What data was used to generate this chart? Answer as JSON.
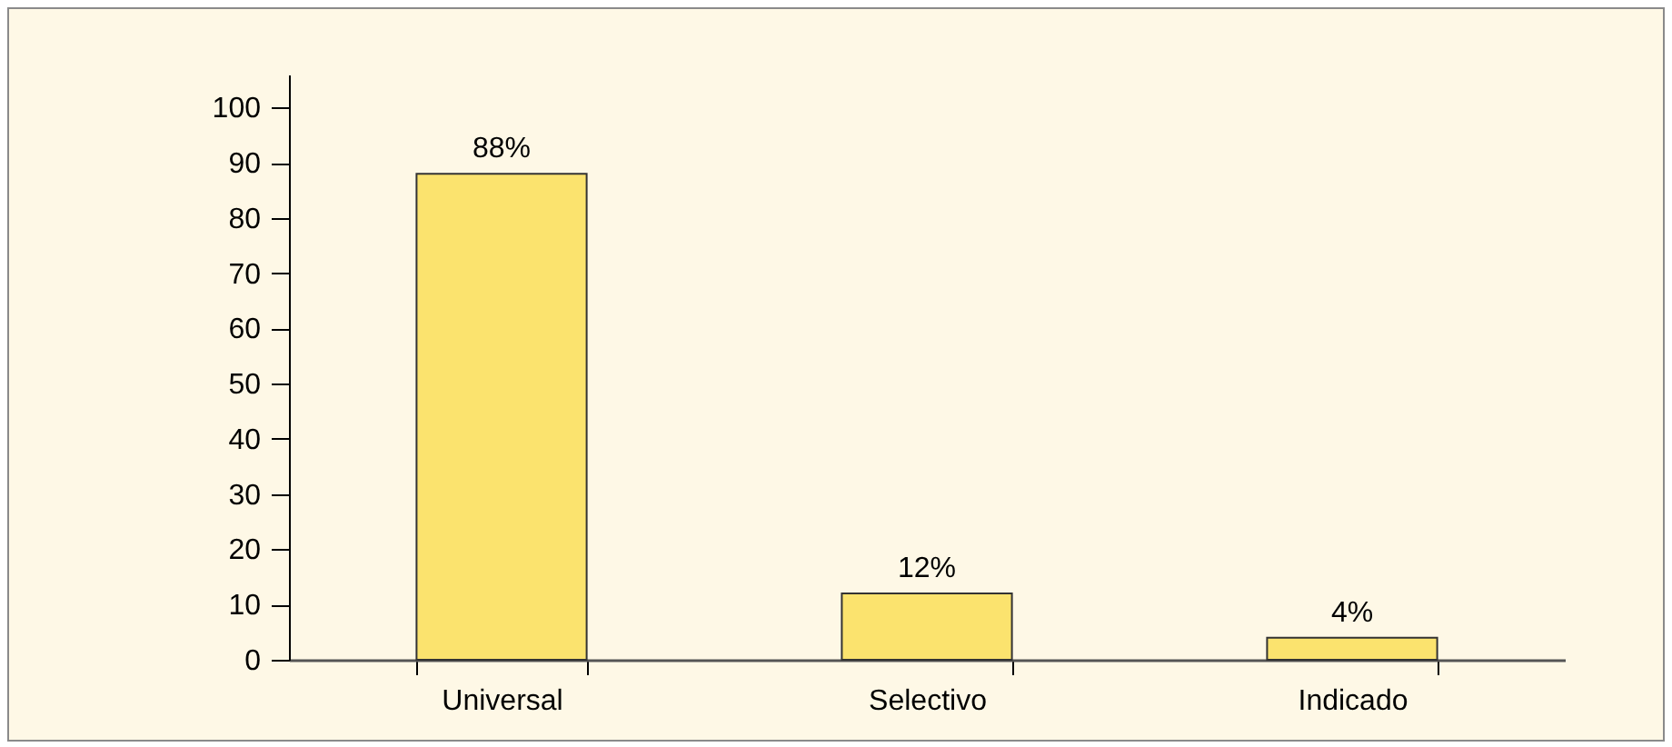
{
  "chart_data": {
    "type": "bar",
    "categories": [
      "Universal",
      "Selectivo",
      "Indicado"
    ],
    "values": [
      88,
      12,
      4
    ],
    "value_labels": [
      "88%",
      "12%",
      "4%"
    ],
    "color": "#fbe36e",
    "ylim": [
      0,
      106
    ],
    "yticks": [
      0,
      10,
      20,
      30,
      40,
      50,
      60,
      70,
      80,
      90,
      100
    ],
    "grid": false
  }
}
